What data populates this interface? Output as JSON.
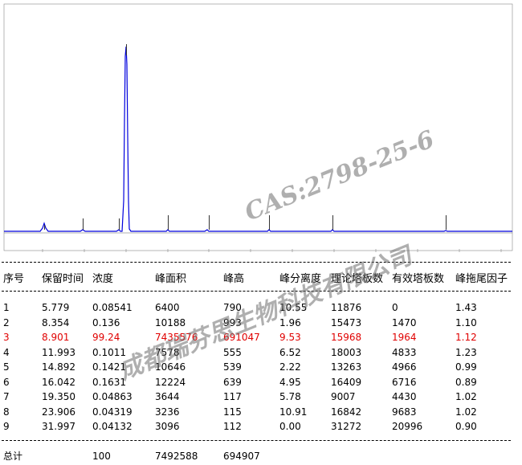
{
  "table": {
    "header": [
      "序号",
      "保留时间",
      "浓度",
      "峰面积",
      "峰高",
      "峰分离度",
      "理论塔板数",
      "有效塔板数",
      "峰拖尾因子"
    ],
    "rows": [
      [
        "1",
        "5.779",
        "0.08541",
        "6400",
        "790",
        "10.55",
        "11876",
        "0",
        "1.43"
      ],
      [
        "2",
        "8.354",
        "0.136",
        "10188",
        "993",
        "1.96",
        "15473",
        "1470",
        "1.10"
      ],
      [
        "3",
        "8.901",
        "99.24",
        "7435576",
        "691047",
        "9.53",
        "15968",
        "1964",
        "1.12"
      ],
      [
        "4",
        "11.993",
        "0.1011",
        "7578",
        "555",
        "6.52",
        "18003",
        "4833",
        "1.23"
      ],
      [
        "5",
        "14.892",
        "0.1421",
        "10646",
        "539",
        "2.22",
        "13263",
        "4966",
        "0.99"
      ],
      [
        "6",
        "16.042",
        "0.1631",
        "12224",
        "639",
        "4.95",
        "16409",
        "6716",
        "0.89"
      ],
      [
        "7",
        "19.350",
        "0.04863",
        "3644",
        "117",
        "5.78",
        "9007",
        "4430",
        "1.02"
      ],
      [
        "8",
        "23.906",
        "0.04319",
        "3236",
        "115",
        "10.91",
        "16842",
        "9683",
        "1.02"
      ],
      [
        "9",
        "31.997",
        "0.04132",
        "3096",
        "112",
        "0.00",
        "31272",
        "20996",
        "0.90"
      ]
    ],
    "total": [
      "总计",
      "100",
      "7492588",
      "694907"
    ]
  },
  "watermark": [
    "CAS:2798-25-6",
    "成都瑞芬思生物科技有限公司"
  ]
}
